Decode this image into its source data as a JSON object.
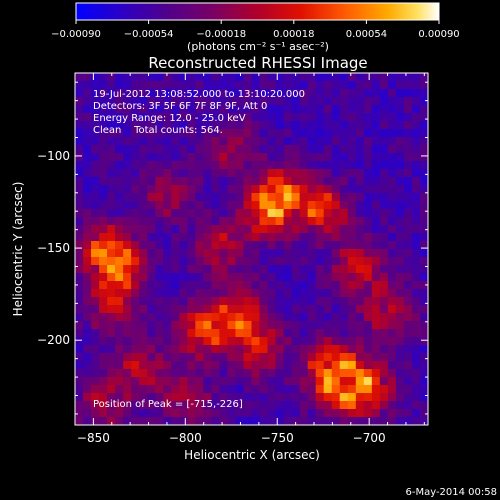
{
  "chart_data": {
    "type": "heatmap",
    "title": "Reconstructed RHESSI Image",
    "xlabel": "Heliocentric X (arcsec)",
    "ylabel": "Heliocentric Y (arcsec)",
    "xlim": [
      -860,
      -668
    ],
    "ylim": [
      -246,
      -55
    ],
    "xticks": [
      -850,
      -800,
      -750,
      -700
    ],
    "yticks": [
      -100,
      -150,
      -200
    ],
    "xtick_labels": [
      "−850",
      "−800",
      "−750",
      "−700"
    ],
    "ytick_labels": [
      "−100",
      "−150",
      "−200"
    ],
    "colorbar": {
      "min": -0.0009,
      "max": 0.0009,
      "ticks": [
        -0.0009,
        -0.00054,
        -0.00018,
        0.00018,
        0.00054,
        0.0009
      ],
      "tick_labels": [
        "−0.00090",
        "−0.00054",
        "−0.00018",
        "0.00018",
        "0.00054",
        "0.00090"
      ],
      "units": "(photons cm⁻² s⁻¹ asec⁻²)",
      "colormap": [
        "#0000ff",
        "#2a00c8",
        "#50008c",
        "#7a0064",
        "#b0002a",
        "#e01000",
        "#ff5a00",
        "#ffaa00",
        "#ffe060",
        "#ffffff"
      ]
    },
    "annotations": {
      "time": "19-Jul-2012 13:08:52.000 to 13:10:20.000",
      "detectors": "Detectors: 3F 5F 6F 7F 8F 9F, Att 0",
      "energy": "Energy Range: 12.0 - 25.0 keV",
      "method": "Clean    Total counts: 564.",
      "peak": "Position of Peak = [-715,-226]"
    },
    "timestamp": "6-May-2014 00:58",
    "grid": false,
    "peak": [
      -715,
      -226
    ],
    "sources": [
      {
        "x": -755,
        "y": -130,
        "amp": 1.0
      },
      {
        "x": -745,
        "y": -118,
        "amp": 0.8
      },
      {
        "x": -725,
        "y": -130,
        "amp": 0.85
      },
      {
        "x": -835,
        "y": -160,
        "amp": 0.9
      },
      {
        "x": -845,
        "y": -150,
        "amp": 0.8
      },
      {
        "x": -840,
        "y": -180,
        "amp": 0.7
      },
      {
        "x": -790,
        "y": -195,
        "amp": 1.0
      },
      {
        "x": -770,
        "y": -185,
        "amp": 0.9
      },
      {
        "x": -760,
        "y": -205,
        "amp": 0.75
      },
      {
        "x": -720,
        "y": -215,
        "amp": 0.95
      },
      {
        "x": -700,
        "y": -225,
        "amp": 0.9
      },
      {
        "x": -715,
        "y": -226,
        "amp": 1.0
      },
      {
        "x": -690,
        "y": -185,
        "amp": 0.7
      },
      {
        "x": -705,
        "y": -160,
        "amp": 0.75
      },
      {
        "x": -780,
        "y": -150,
        "amp": 0.65
      },
      {
        "x": -810,
        "y": -120,
        "amp": 0.55
      },
      {
        "x": -800,
        "y": -230,
        "amp": 0.55
      },
      {
        "x": -825,
        "y": -215,
        "amp": 0.6
      },
      {
        "x": -775,
        "y": -95,
        "amp": 0.5
      },
      {
        "x": -845,
        "y": -235,
        "amp": 0.55
      }
    ]
  }
}
